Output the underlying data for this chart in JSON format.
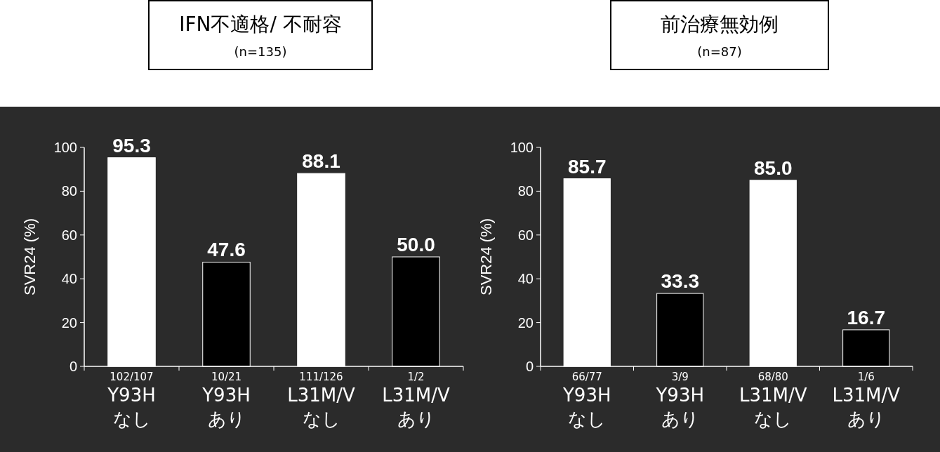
{
  "chart_data": [
    {
      "type": "bar",
      "title": "IFN不適格/ 不耐容",
      "subtitle": "(n=135)",
      "ylabel": "SVR24 (%)",
      "categories": [
        "102/107\nY93H\nなし",
        "10/21\nY93H\nあり",
        "111/126\nL31M/V\nなし",
        "1/2\nL31M/V\nあり"
      ],
      "values": [
        95.3,
        47.6,
        88.1,
        50.0
      ],
      "colors": [
        "#ffffff",
        "#000000",
        "#ffffff",
        "#000000"
      ],
      "value_labels": [
        "95.3",
        "47.6",
        "88.1",
        "50.0"
      ],
      "ylim": [
        0,
        100
      ],
      "yticks": [
        0,
        20,
        40,
        60,
        80,
        100
      ],
      "grid": false
    },
    {
      "type": "bar",
      "title": "前治療無効例",
      "subtitle": "(n=87)",
      "ylabel": "SVR24 (%)",
      "categories": [
        "66/77\nY93H\nなし",
        "3/9\nY93H\nあり",
        "68/80\nL31M/V\nなし",
        "1/6\nL31M/V\nあり"
      ],
      "values": [
        85.7,
        33.3,
        85.0,
        16.7
      ],
      "colors": [
        "#ffffff",
        "#000000",
        "#ffffff",
        "#000000"
      ],
      "value_labels": [
        "85.7",
        "33.3",
        "85.0",
        "16.7"
      ],
      "ylim": [
        0,
        100
      ],
      "yticks": [
        0,
        20,
        40,
        60,
        80,
        100
      ],
      "grid": false
    }
  ]
}
